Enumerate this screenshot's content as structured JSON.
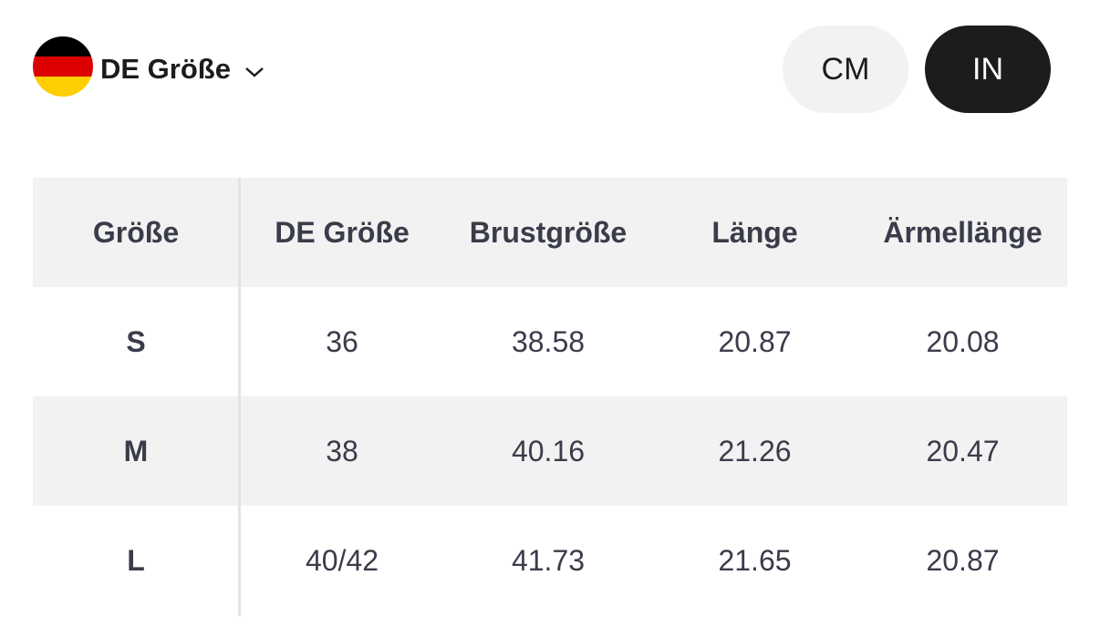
{
  "header": {
    "region_label": "DE Größe",
    "units": [
      "CM",
      "IN"
    ],
    "selected_unit": 1
  },
  "table": {
    "columns": [
      "Größe",
      "DE Größe",
      "Brustgröße",
      "Länge",
      "Ärmellänge"
    ],
    "rows": [
      [
        "S",
        "36",
        "38.58",
        "20.87",
        "20.08"
      ],
      [
        "M",
        "38",
        "40.16",
        "21.26",
        "20.47"
      ],
      [
        "L",
        "40/42",
        "41.73",
        "21.65",
        "20.87"
      ]
    ]
  }
}
